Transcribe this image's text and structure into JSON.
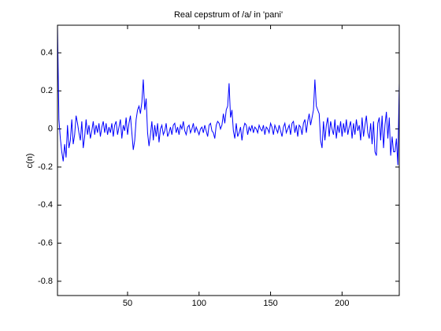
{
  "chart_data": {
    "type": "line",
    "title": "Real cepstrum of /a/ in 'pani'",
    "ylabel": "c(n)",
    "xlim": [
      1,
      240
    ],
    "ylim": [
      -0.875,
      0.545
    ],
    "xticks": [
      50,
      100,
      150,
      200
    ],
    "yticks": [
      -0.8,
      -0.6,
      -0.4,
      -0.2,
      0,
      0.2,
      0.4
    ],
    "grid": false,
    "x": [
      1,
      2,
      3,
      4,
      5,
      6,
      7,
      8,
      9,
      10,
      11,
      12,
      13,
      14,
      15,
      16,
      17,
      18,
      19,
      20,
      21,
      22,
      23,
      24,
      25,
      26,
      27,
      28,
      29,
      30,
      31,
      32,
      33,
      34,
      35,
      36,
      37,
      38,
      39,
      40,
      41,
      42,
      43,
      44,
      45,
      46,
      47,
      48,
      49,
      50,
      51,
      52,
      53,
      54,
      55,
      56,
      57,
      58,
      59,
      60,
      61,
      62,
      63,
      64,
      65,
      66,
      67,
      68,
      69,
      70,
      71,
      72,
      73,
      74,
      75,
      76,
      77,
      78,
      79,
      80,
      81,
      82,
      83,
      84,
      85,
      86,
      87,
      88,
      89,
      90,
      91,
      92,
      93,
      94,
      95,
      96,
      97,
      98,
      99,
      100,
      101,
      102,
      103,
      104,
      105,
      106,
      107,
      108,
      109,
      110,
      111,
      112,
      113,
      114,
      115,
      116,
      117,
      118,
      119,
      120,
      121,
      122,
      123,
      124,
      125,
      126,
      127,
      128,
      129,
      130,
      131,
      132,
      133,
      134,
      135,
      136,
      137,
      138,
      139,
      140,
      141,
      142,
      143,
      144,
      145,
      146,
      147,
      148,
      149,
      150,
      151,
      152,
      153,
      154,
      155,
      156,
      157,
      158,
      159,
      160,
      161,
      162,
      163,
      164,
      165,
      166,
      167,
      168,
      169,
      170,
      171,
      172,
      173,
      174,
      175,
      176,
      177,
      178,
      179,
      180,
      181,
      182,
      183,
      184,
      185,
      186,
      187,
      188,
      189,
      190,
      191,
      192,
      193,
      194,
      195,
      196,
      197,
      198,
      199,
      200,
      201,
      202,
      203,
      204,
      205,
      206,
      207,
      208,
      209,
      210,
      211,
      212,
      213,
      214,
      215,
      216,
      217,
      218,
      219,
      220,
      221,
      222,
      223,
      224,
      225,
      226,
      227,
      228,
      229,
      230,
      231,
      232,
      233,
      234,
      235,
      236,
      237,
      238,
      239,
      240
    ],
    "series": [
      {
        "name": "c(n)",
        "color": "#0000ff",
        "values": [
          0.545,
          0.05,
          -0.05,
          -0.12,
          -0.17,
          -0.08,
          -0.15,
          0.02,
          -0.1,
          -0.06,
          0.05,
          -0.08,
          -0.03,
          0.07,
          0.03,
          -0.02,
          -0.06,
          0.04,
          -0.1,
          -0.04,
          0.05,
          -0.03,
          0.02,
          -0.05,
          -0.01,
          0.04,
          -0.03,
          0.02,
          -0.02,
          0.03,
          -0.04,
          0.01,
          0.04,
          -0.02,
          0.03,
          -0.03,
          0.01,
          -0.02,
          0.03,
          -0.04,
          0.02,
          0.04,
          -0.03,
          0.01,
          0.05,
          -0.05,
          0.02,
          -0.01,
          0.06,
          -0.03,
          0.03,
          0.07,
          -0.02,
          -0.11,
          -0.06,
          0.05,
          0.1,
          0.12,
          0.08,
          0.14,
          0.26,
          0.1,
          0.16,
          -0.02,
          -0.09,
          -0.03,
          0.04,
          -0.06,
          0.02,
          -0.04,
          0.03,
          -0.07,
          0.0,
          0.02,
          -0.03,
          -0.01,
          0.03,
          -0.04,
          -0.02,
          0.01,
          -0.03,
          0.02,
          0.03,
          -0.02,
          0.01,
          -0.03,
          0.02,
          0.0,
          0.04,
          -0.01,
          -0.03,
          0.01,
          0.02,
          -0.02,
          0.0,
          0.03,
          -0.02,
          0.01,
          -0.01,
          -0.03,
          0.0,
          0.01,
          -0.02,
          0.02,
          -0.01,
          -0.04,
          0.02,
          0.03,
          -0.01,
          -0.02,
          -0.05,
          0.02,
          0.04,
          0.03,
          0.0,
          0.02,
          0.08,
          0.03,
          0.1,
          0.12,
          0.24,
          0.06,
          0.1,
          -0.01,
          -0.05,
          0.03,
          -0.04,
          -0.02,
          0.01,
          -0.06,
          0.0,
          0.03,
          0.02,
          -0.03,
          0.01,
          -0.01,
          0.02,
          -0.02,
          0.01,
          0.0,
          -0.02,
          0.02,
          0.0,
          -0.01,
          0.02,
          -0.03,
          0.01,
          0.0,
          -0.02,
          0.03,
          0.01,
          -0.03,
          0.02,
          0.0,
          -0.02,
          0.02,
          -0.01,
          -0.04,
          0.01,
          0.03,
          -0.02,
          0.0,
          0.02,
          -0.03,
          0.03,
          0.04,
          -0.02,
          0.02,
          -0.04,
          0.02,
          0.01,
          -0.03,
          0.03,
          0.05,
          -0.02,
          0.04,
          0.08,
          0.02,
          0.06,
          0.1,
          0.26,
          0.12,
          0.1,
          0.08,
          -0.06,
          -0.1,
          0.04,
          -0.06,
          0.02,
          0.06,
          -0.04,
          0.04,
          0.0,
          -0.03,
          0.05,
          -0.05,
          0.02,
          -0.02,
          0.04,
          -0.04,
          0.03,
          -0.02,
          0.05,
          -0.03,
          0.01,
          0.04,
          -0.05,
          0.03,
          -0.03,
          0.05,
          -0.01,
          0.02,
          -0.06,
          0.06,
          -0.04,
          0.02,
          0.07,
          -0.02,
          -0.05,
          0.03,
          -0.08,
          0.04,
          -0.12,
          -0.14,
          0.03,
          0.06,
          -0.06,
          0.07,
          -0.1,
          0.02,
          0.09,
          -0.05,
          0.06,
          -0.14,
          -0.04,
          -0.12,
          -0.12,
          -0.05,
          -0.19,
          0.24
        ]
      }
    ]
  }
}
